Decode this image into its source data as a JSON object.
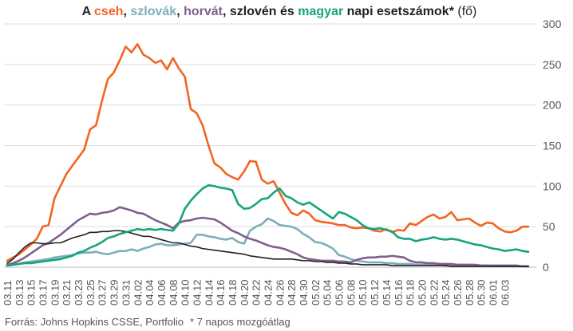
{
  "title": {
    "prefix": "A ",
    "cz": "cseh",
    "sep1": ", ",
    "sk": "szlovák",
    "sep2": ", ",
    "hr": "horvát",
    "sep3": ", szlovén és ",
    "hu": "magyar",
    "suffix": " napi esetszámok*",
    "unit": " (fő)"
  },
  "footnote": {
    "source": "Forrás: Johns Hopkins CSSE, Portfolio",
    "note": "* 7 napos mozgóátlag"
  },
  "colors": {
    "cz": "#f26522",
    "sk": "#7fadbb",
    "hr": "#7f5f8f",
    "si": "#222222",
    "hu": "#16a47e",
    "grid": "#dddddd",
    "text": "#555555"
  },
  "chart_data": {
    "type": "line",
    "start_date": "03.11",
    "ylim": [
      0,
      300
    ],
    "yticks": [
      0,
      50,
      100,
      150,
      200,
      250,
      300
    ],
    "xtick_labels": [
      "03.11",
      "03.13",
      "03.15",
      "03.17",
      "03.19",
      "03.21",
      "03.23",
      "03.25",
      "03.27",
      "03.29",
      "03.31",
      "04.02",
      "04.04",
      "04.06",
      "04.08",
      "04.10",
      "04.12",
      "04.14",
      "04.16",
      "04.18",
      "04.20",
      "04.22",
      "04.24",
      "04.26",
      "04.28",
      "04.30",
      "05.02",
      "05.04",
      "05.06",
      "05.08",
      "05.10",
      "05.12",
      "05.14",
      "05.16",
      "05.18",
      "05.20",
      "05.22",
      "05.24",
      "05.26",
      "05.28",
      "05.30",
      "06.01",
      "06.03"
    ],
    "series": [
      {
        "key": "cz",
        "name": "cseh",
        "values": [
          8,
          12,
          16,
          22,
          28,
          35,
          50,
          52,
          85,
          100,
          115,
          125,
          135,
          145,
          170,
          175,
          205,
          232,
          240,
          255,
          272,
          265,
          275,
          262,
          258,
          252,
          255,
          244,
          258,
          245,
          235,
          195,
          190,
          175,
          150,
          128,
          123,
          115,
          111,
          108,
          118,
          131,
          130,
          108,
          103,
          106,
          92,
          78,
          67,
          64,
          70,
          66,
          58,
          56,
          55,
          54,
          52,
          52,
          49,
          48,
          49,
          48,
          45,
          44,
          47,
          43,
          46,
          45,
          54,
          52,
          57,
          62,
          65,
          60,
          62,
          68,
          58,
          59,
          60,
          55,
          51,
          55,
          54,
          48,
          44,
          43,
          45,
          50,
          50
        ]
      },
      {
        "key": "sk",
        "name": "szlovák",
        "values": [
          2,
          3,
          4,
          6,
          7,
          8,
          9,
          10,
          12,
          13,
          14,
          15,
          17,
          18,
          18,
          19,
          17,
          16,
          18,
          20,
          20,
          22,
          20,
          23,
          25,
          28,
          29,
          27,
          27,
          28,
          29,
          30,
          40,
          40,
          38,
          37,
          35,
          34,
          36,
          31,
          29,
          45,
          50,
          53,
          60,
          57,
          52,
          51,
          50,
          47,
          41,
          37,
          31,
          30,
          27,
          23,
          15,
          13,
          10,
          8,
          7,
          6,
          6,
          6,
          5,
          5,
          4,
          4,
          4,
          3,
          3,
          3,
          3,
          3,
          2,
          2,
          2,
          2,
          2,
          2,
          2,
          2,
          1,
          1,
          1,
          1,
          1,
          1,
          1
        ]
      },
      {
        "key": "hr",
        "name": "horvát",
        "values": [
          3,
          5,
          8,
          12,
          17,
          22,
          27,
          30,
          35,
          40,
          46,
          52,
          58,
          62,
          66,
          65,
          67,
          68,
          70,
          74,
          72,
          70,
          67,
          66,
          62,
          58,
          55,
          52,
          48,
          55,
          57,
          58,
          60,
          61,
          60,
          59,
          55,
          50,
          45,
          42,
          38,
          35,
          33,
          30,
          27,
          25,
          24,
          22,
          19,
          16,
          12,
          10,
          9,
          8,
          8,
          8,
          7,
          7,
          6,
          9,
          11,
          12,
          12,
          13,
          13,
          14,
          13,
          12,
          8,
          6,
          6,
          5,
          5,
          4,
          4,
          4,
          3,
          3,
          3,
          3,
          2,
          2,
          2,
          2,
          2,
          2,
          2,
          1,
          1
        ]
      },
      {
        "key": "si",
        "name": "szlovén",
        "values": [
          5,
          10,
          18,
          25,
          30,
          30,
          29,
          29,
          30,
          30,
          33,
          36,
          38,
          40,
          43,
          43,
          44,
          44,
          45,
          45,
          44,
          42,
          40,
          38,
          38,
          36,
          34,
          32,
          30,
          30,
          28,
          26,
          25,
          23,
          22,
          21,
          20,
          19,
          18,
          17,
          16,
          14,
          13,
          12,
          11,
          10,
          10,
          10,
          10,
          9,
          8,
          8,
          7,
          7,
          6,
          6,
          5,
          5,
          4,
          4,
          3,
          3,
          3,
          3,
          3,
          2,
          2,
          2,
          2,
          2,
          2,
          2,
          2,
          2,
          2,
          1,
          1,
          1,
          1,
          1,
          1,
          1,
          1,
          1,
          1,
          1,
          1,
          1,
          1
        ]
      },
      {
        "key": "hu",
        "name": "magyar",
        "values": [
          2,
          3,
          4,
          5,
          5,
          6,
          7,
          8,
          9,
          10,
          12,
          14,
          18,
          20,
          24,
          27,
          31,
          36,
          38,
          41,
          43,
          45,
          47,
          46,
          47,
          46,
          47,
          46,
          45,
          54,
          72,
          82,
          90,
          97,
          101,
          100,
          98,
          97,
          95,
          78,
          72,
          73,
          78,
          84,
          85,
          92,
          97,
          88,
          85,
          80,
          77,
          80,
          75,
          70,
          65,
          60,
          68,
          66,
          62,
          58,
          52,
          48,
          47,
          48,
          46,
          44,
          37,
          35,
          35,
          32,
          34,
          35,
          37,
          35,
          34,
          35,
          34,
          32,
          30,
          28,
          27,
          25,
          23,
          22,
          20,
          21,
          22,
          20,
          19
        ]
      }
    ]
  }
}
